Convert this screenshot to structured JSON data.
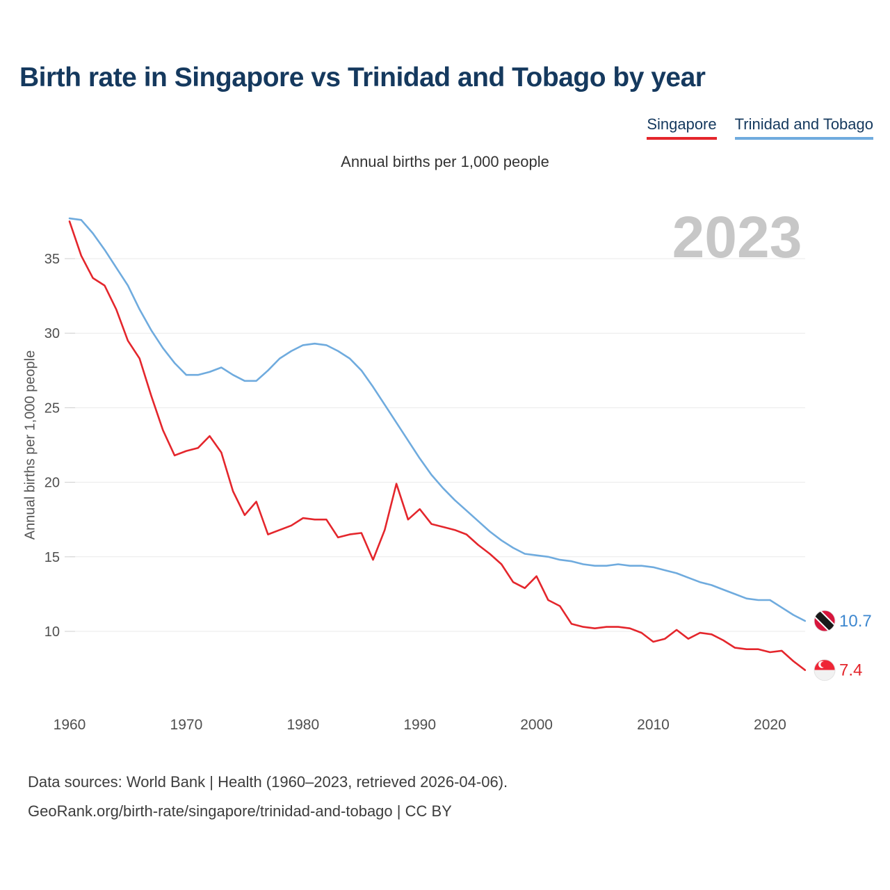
{
  "title": "Birth rate in Singapore vs Trinidad and Tobago by year",
  "subtitle": "Annual births per 1,000 people",
  "watermark": "2023",
  "legend": [
    {
      "label": "Singapore",
      "color": "#e4262c"
    },
    {
      "label": "Trinidad and Tobago",
      "color": "#6fabde"
    }
  ],
  "end_labels": [
    {
      "series": "Trinidad and Tobago",
      "value": "10.7",
      "color": "#3d87cf",
      "flag": "trinidad-and-tobago"
    },
    {
      "series": "Singapore",
      "value": "7.4",
      "color": "#e4262c",
      "flag": "singapore"
    }
  ],
  "footer": {
    "line1": "Data sources: World Bank | Health (1960–2023, retrieved 2026-04-06).",
    "line2": "GeoRank.org/birth-rate/singapore/trinidad-and-tobago | CC BY"
  },
  "chart_data": {
    "type": "line",
    "title": "Birth rate in Singapore vs Trinidad and Tobago by year",
    "xlabel": "",
    "ylabel": "Annual births per 1,000 people",
    "grid": "horizontal",
    "legend_position": "top-right",
    "xlim": [
      1960,
      2023
    ],
    "ylim": [
      6.5,
      38.5
    ],
    "xticks": [
      1960,
      1970,
      1980,
      1990,
      2000,
      2010,
      2020
    ],
    "yticks": [
      10,
      15,
      20,
      25,
      30,
      35
    ],
    "x": [
      1960,
      1961,
      1962,
      1963,
      1964,
      1965,
      1966,
      1967,
      1968,
      1969,
      1970,
      1971,
      1972,
      1973,
      1974,
      1975,
      1976,
      1977,
      1978,
      1979,
      1980,
      1981,
      1982,
      1983,
      1984,
      1985,
      1986,
      1987,
      1988,
      1989,
      1990,
      1991,
      1992,
      1993,
      1994,
      1995,
      1996,
      1997,
      1998,
      1999,
      2000,
      2001,
      2002,
      2003,
      2004,
      2005,
      2006,
      2007,
      2008,
      2009,
      2010,
      2011,
      2012,
      2013,
      2014,
      2015,
      2016,
      2017,
      2018,
      2019,
      2020,
      2021,
      2022,
      2023
    ],
    "series": [
      {
        "name": "Singapore",
        "color": "#e4262c",
        "values": [
          37.5,
          35.2,
          33.7,
          33.2,
          31.6,
          29.5,
          28.3,
          25.8,
          23.5,
          21.8,
          22.1,
          22.3,
          23.1,
          22.0,
          19.4,
          17.8,
          18.7,
          16.5,
          16.8,
          17.1,
          17.6,
          17.5,
          17.5,
          16.3,
          16.5,
          16.6,
          14.8,
          16.8,
          19.9,
          17.5,
          18.2,
          17.2,
          17.0,
          16.8,
          16.5,
          15.8,
          15.2,
          14.5,
          13.3,
          12.9,
          13.7,
          12.1,
          11.7,
          10.5,
          10.3,
          10.2,
          10.3,
          10.3,
          10.2,
          9.9,
          9.3,
          9.5,
          10.1,
          9.5,
          9.9,
          9.8,
          9.4,
          8.9,
          8.8,
          8.8,
          8.6,
          8.7,
          8.0,
          7.4
        ]
      },
      {
        "name": "Trinidad and Tobago",
        "color": "#6fabde",
        "values": [
          37.7,
          37.6,
          36.7,
          35.6,
          34.4,
          33.2,
          31.6,
          30.2,
          29.0,
          28.0,
          27.2,
          27.2,
          27.4,
          27.7,
          27.2,
          26.8,
          26.8,
          27.5,
          28.3,
          28.8,
          29.2,
          29.3,
          29.2,
          28.8,
          28.3,
          27.5,
          26.4,
          25.2,
          24.0,
          22.8,
          21.6,
          20.5,
          19.6,
          18.8,
          18.1,
          17.4,
          16.7,
          16.1,
          15.6,
          15.2,
          15.1,
          15.0,
          14.8,
          14.7,
          14.5,
          14.4,
          14.4,
          14.5,
          14.4,
          14.4,
          14.3,
          14.1,
          13.9,
          13.6,
          13.3,
          13.1,
          12.8,
          12.5,
          12.2,
          12.1,
          12.1,
          11.6,
          11.1,
          10.7
        ]
      }
    ]
  }
}
